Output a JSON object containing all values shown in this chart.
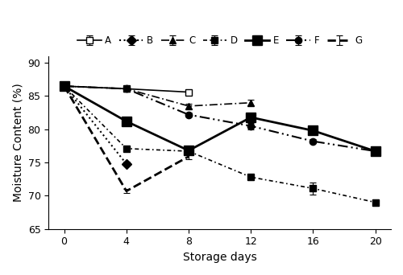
{
  "x": [
    0,
    4,
    8,
    12,
    16,
    20
  ],
  "series_data": {
    "A": {
      "y": [
        86.5,
        86.1,
        85.6,
        null,
        null,
        null
      ],
      "ye": [
        0.2,
        0.2,
        0.3,
        null,
        null,
        null
      ]
    },
    "B": {
      "y": [
        86.5,
        74.8,
        null,
        null,
        null,
        null
      ],
      "ye": [
        0.2,
        0.3,
        null,
        null,
        null,
        null
      ]
    },
    "C": {
      "y": [
        86.5,
        86.1,
        83.5,
        84.0,
        null,
        null
      ],
      "ye": [
        0.2,
        0.2,
        0.4,
        0.4,
        null,
        null
      ]
    },
    "D": {
      "y": [
        86.5,
        77.1,
        76.7,
        72.8,
        71.1,
        69.0
      ],
      "ye": [
        0.2,
        0.4,
        0.5,
        0.4,
        0.9,
        0.5
      ]
    },
    "E": {
      "y": [
        86.5,
        81.2,
        76.8,
        81.8,
        79.8,
        76.7
      ],
      "ye": [
        0.2,
        0.3,
        0.5,
        0.3,
        0.3,
        0.3
      ]
    },
    "F": {
      "y": [
        86.5,
        86.1,
        82.2,
        80.5,
        78.2,
        76.7
      ],
      "ye": [
        0.2,
        0.3,
        0.3,
        0.5,
        0.3,
        0.3
      ]
    },
    "G": {
      "y": [
        86.5,
        70.7,
        75.9,
        null,
        null,
        null
      ],
      "ye": [
        0.2,
        0.3,
        0.4,
        null,
        null,
        null
      ]
    }
  },
  "series_styles": {
    "A": {
      "linestyle": "-",
      "marker": "s",
      "mfc": "white",
      "mec": "black",
      "ms": 6,
      "lw": 1.2,
      "label": "A"
    },
    "B": {
      "linestyle": ":",
      "marker": "D",
      "mfc": "black",
      "mec": "black",
      "ms": 6,
      "lw": 1.5,
      "label": "B"
    },
    "C": {
      "linestyle": [
        6,
        2,
        1,
        2
      ],
      "marker": "^",
      "mfc": "black",
      "mec": "black",
      "ms": 6,
      "lw": 1.2,
      "label": "C"
    },
    "D": {
      "linestyle": [
        3,
        2,
        1,
        2
      ],
      "marker": "s",
      "mfc": "black",
      "mec": "black",
      "ms": 6,
      "lw": 1.2,
      "label": "D"
    },
    "E": {
      "linestyle": "-",
      "marker": "s",
      "mfc": "black",
      "mec": "black",
      "ms": 8,
      "lw": 2.0,
      "label": "E"
    },
    "F": {
      "linestyle": [
        6,
        2,
        1,
        2,
        1,
        2
      ],
      "marker": "o",
      "mfc": "black",
      "mec": "black",
      "ms": 6,
      "lw": 1.5,
      "label": "F"
    },
    "G": {
      "linestyle": "--",
      "marker": null,
      "mfc": "black",
      "mec": "black",
      "ms": 0,
      "lw": 2.0,
      "label": "G"
    }
  },
  "series_order": [
    "A",
    "B",
    "C",
    "D",
    "E",
    "F",
    "G"
  ],
  "xlabel": "Storage days",
  "ylabel": "Moisture Content (%)",
  "ylim": [
    65,
    91
  ],
  "yticks": [
    65,
    70,
    75,
    80,
    85,
    90
  ],
  "xticks": [
    0,
    4,
    8,
    12,
    16,
    20
  ],
  "background_color": "white"
}
